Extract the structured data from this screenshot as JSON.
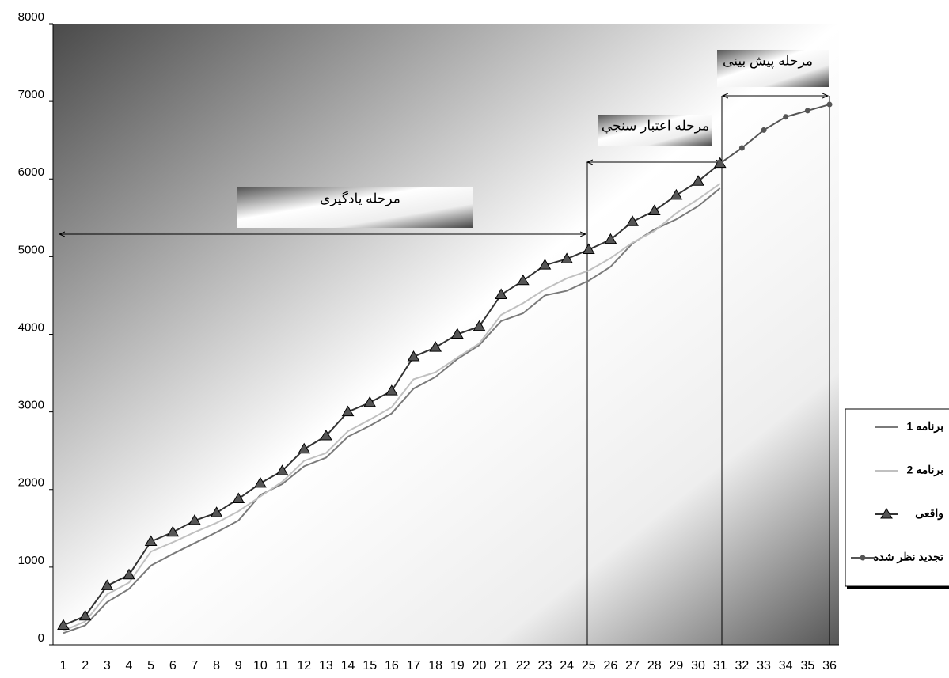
{
  "chart_data": {
    "type": "line",
    "categories": [
      "1",
      "2",
      "3",
      "4",
      "5",
      "6",
      "7",
      "8",
      "9",
      "10",
      "11",
      "12",
      "13",
      "14",
      "15",
      "16",
      "17",
      "18",
      "19",
      "20",
      "21",
      "22",
      "23",
      "24",
      "25",
      "26",
      "27",
      "28",
      "29",
      "30",
      "31",
      "32",
      "33",
      "34",
      "35",
      "36"
    ],
    "series": [
      {
        "name": "برنامه 1",
        "color": "#7a7a7a",
        "marker": "none",
        "values": [
          150,
          250,
          550,
          720,
          1020,
          1170,
          1310,
          1450,
          1600,
          1930,
          2070,
          2300,
          2410,
          2680,
          2820,
          2980,
          3300,
          3450,
          3680,
          3860,
          4170,
          4270,
          4500,
          4560,
          4690,
          4870,
          5170,
          5350,
          5480,
          5650,
          5880,
          null,
          null,
          null,
          null,
          null
        ]
      },
      {
        "name": "برنامه 2",
        "color": "#c0c0c0",
        "marker": "none",
        "values": [
          180,
          300,
          650,
          800,
          1200,
          1320,
          1450,
          1570,
          1720,
          1910,
          2100,
          2370,
          2470,
          2750,
          2900,
          3060,
          3420,
          3510,
          3700,
          3880,
          4250,
          4400,
          4580,
          4720,
          4820,
          4980,
          5180,
          5330,
          5560,
          5740,
          5940,
          null,
          null,
          null,
          null,
          null
        ]
      },
      {
        "name": "واقعی",
        "color": "#333333",
        "marker": "triangle",
        "values": [
          250,
          370,
          760,
          900,
          1330,
          1450,
          1600,
          1700,
          1880,
          2080,
          2240,
          2520,
          2690,
          3000,
          3120,
          3270,
          3710,
          3830,
          4000,
          4100,
          4510,
          4690,
          4890,
          4970,
          5090,
          5220,
          5450,
          5590,
          5790,
          5970,
          6200,
          null,
          null,
          null,
          null,
          null
        ]
      },
      {
        "name": "تجدید نظر شده",
        "color": "#555555",
        "marker": "circle",
        "values": [
          null,
          null,
          null,
          null,
          null,
          null,
          null,
          null,
          null,
          null,
          null,
          null,
          null,
          null,
          null,
          null,
          null,
          null,
          null,
          null,
          null,
          null,
          null,
          null,
          null,
          null,
          null,
          null,
          null,
          null,
          6200,
          6400,
          6630,
          6800,
          6880,
          6960
        ]
      }
    ],
    "annotations": [
      "مرحله یادگیری",
      "مرحله اعتبار سنجي",
      "مرحله پیش بینی"
    ],
    "ylim": [
      0,
      8000
    ],
    "yticks": [
      0,
      1000,
      2000,
      3000,
      4000,
      5000,
      6000,
      7000,
      8000
    ],
    "grid": false,
    "legend": "right"
  }
}
